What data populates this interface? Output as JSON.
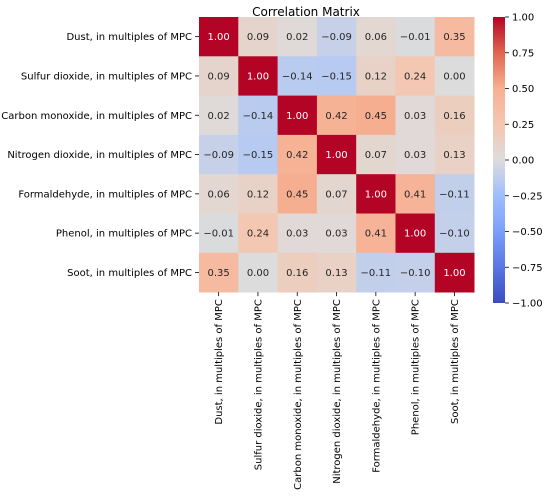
{
  "chart_data": {
    "type": "heatmap",
    "title": "Correlation Matrix",
    "variables": [
      "Dust, in multiples of MPC",
      "Sulfur dioxide, in multiples of MPC",
      "Carbon monoxide, in multiples of MPC",
      "Nitrogen dioxide, in multiples of MPC",
      "Formaldehyde, in multiples of MPC",
      "Phenol, in multiples of MPC",
      "Soot, in multiples of MPC"
    ],
    "values": [
      [
        1.0,
        0.09,
        0.02,
        -0.09,
        0.06,
        -0.01,
        0.35
      ],
      [
        0.09,
        1.0,
        -0.14,
        -0.15,
        0.12,
        0.24,
        0.0
      ],
      [
        0.02,
        -0.14,
        1.0,
        0.42,
        0.45,
        0.03,
        0.16
      ],
      [
        -0.09,
        -0.15,
        0.42,
        1.0,
        0.07,
        0.03,
        0.13
      ],
      [
        0.06,
        0.12,
        0.45,
        0.07,
        1.0,
        0.41,
        -0.11
      ],
      [
        -0.01,
        0.24,
        0.03,
        0.03,
        0.41,
        1.0,
        -0.1
      ],
      [
        0.35,
        0.0,
        0.16,
        0.13,
        -0.11,
        -0.1,
        1.0
      ]
    ],
    "vmin": -1.0,
    "vmax": 1.0,
    "colormap": "coolwarm",
    "colorbar_ticks": [
      "1.00",
      "0.75",
      "0.50",
      "0.25",
      "0.00",
      "−0.25",
      "−0.50",
      "−0.75",
      "−1.00"
    ],
    "colorbar_tick_values": [
      1.0,
      0.75,
      0.5,
      0.25,
      0.0,
      -0.25,
      -0.5,
      -0.75,
      -1.0
    ],
    "annotations": true,
    "grid": false,
    "legend": "colorbar-right"
  }
}
